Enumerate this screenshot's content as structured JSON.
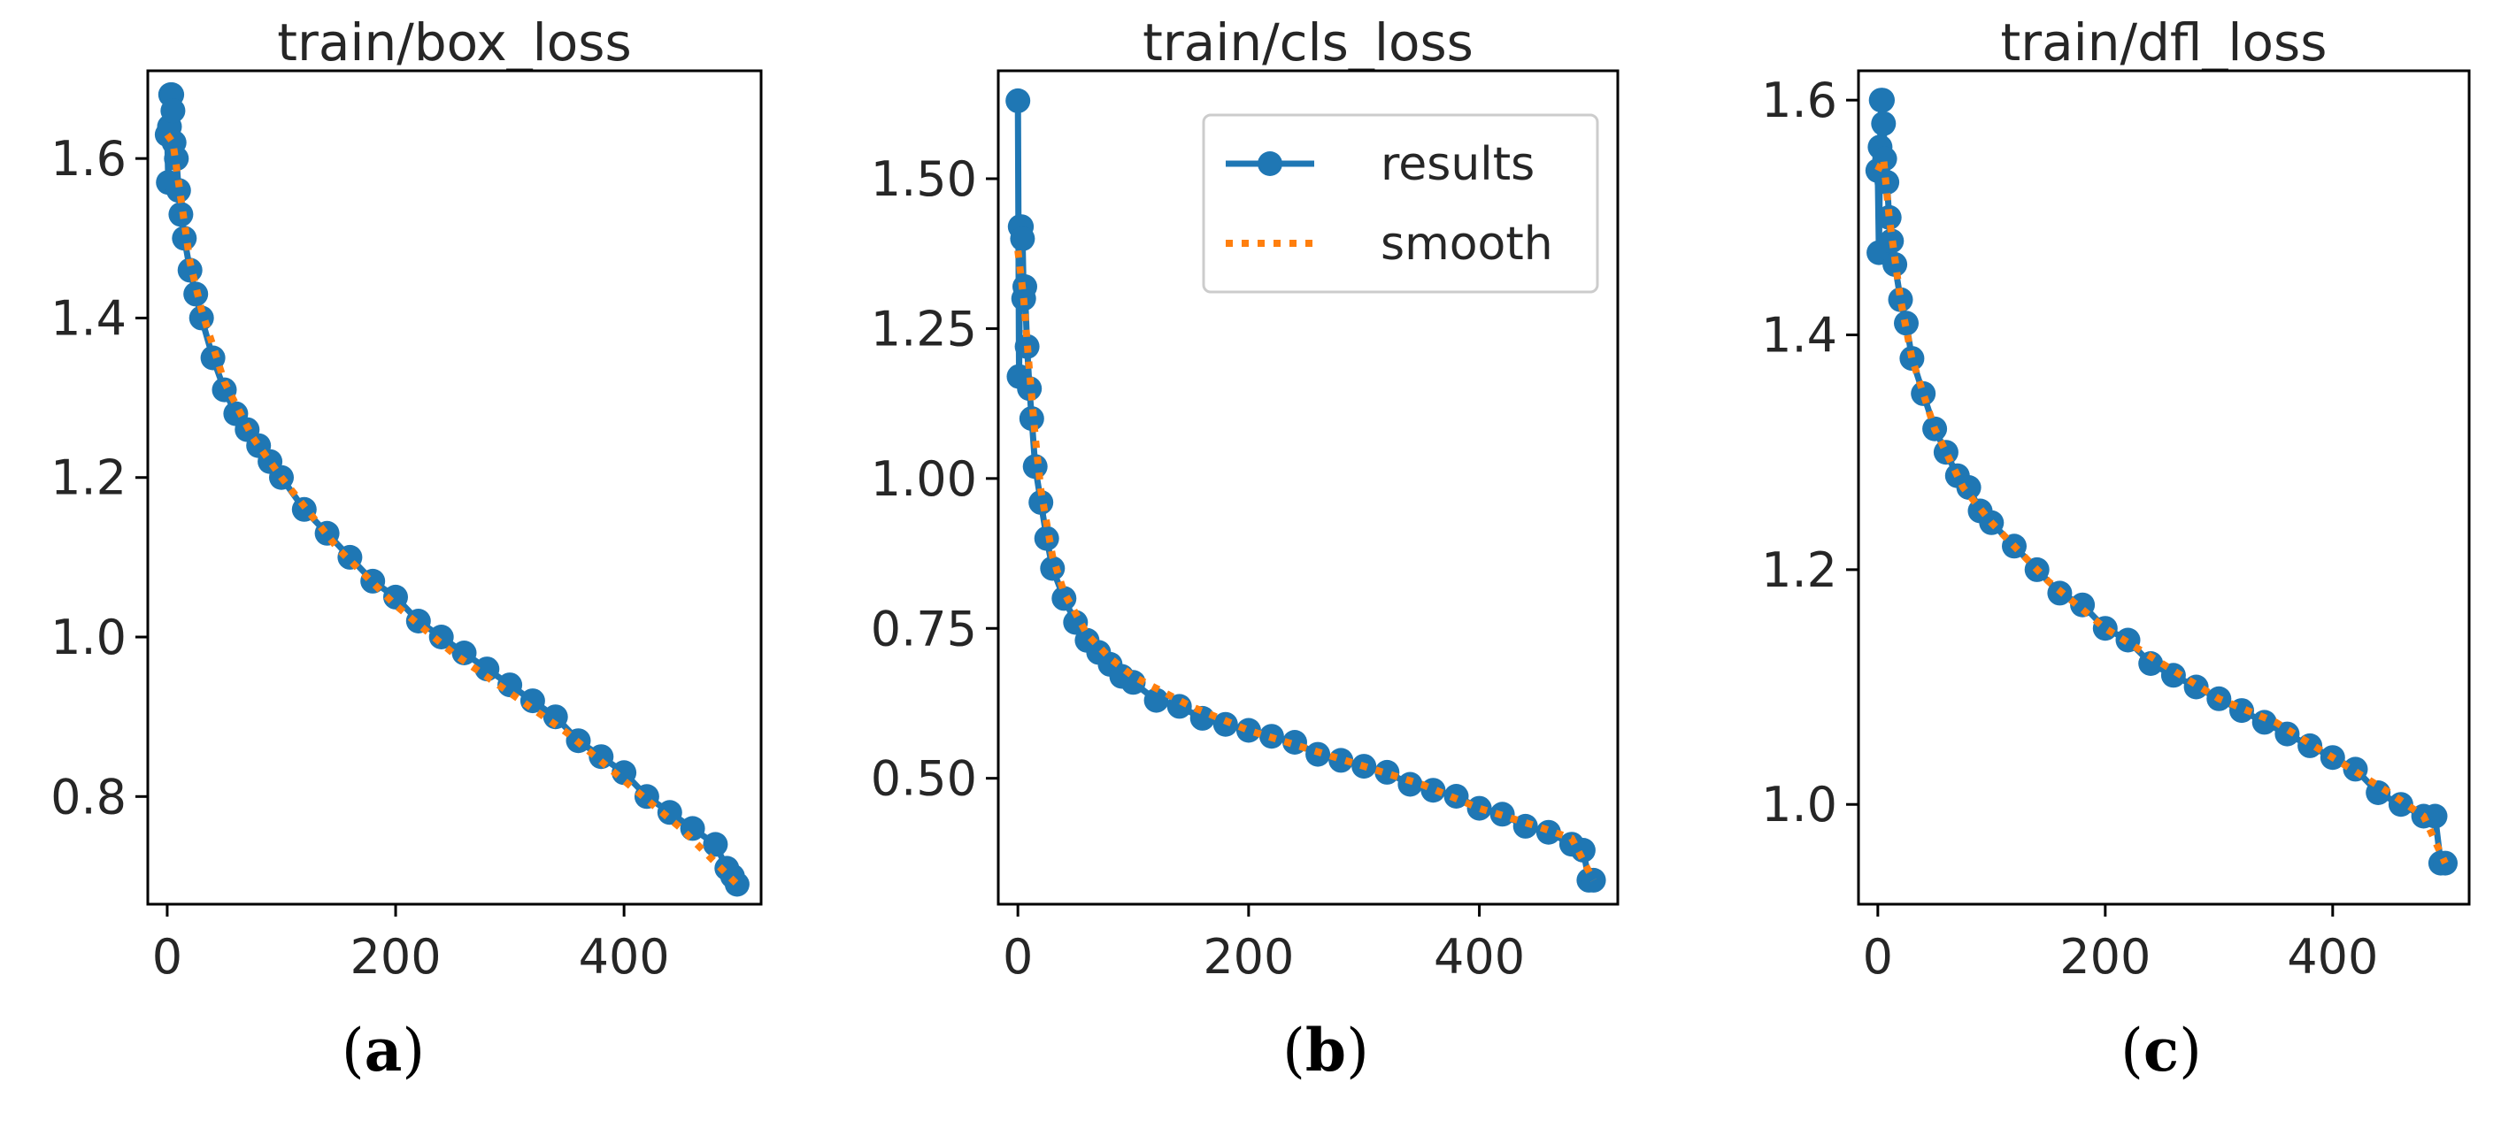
{
  "chart_data": [
    {
      "type": "line",
      "title": "train/box_loss",
      "panel_label": {
        "open": "(",
        "letter": "a",
        "close": ")"
      },
      "xlim": [
        -17,
        520
      ],
      "ylim": [
        0.665,
        1.71
      ],
      "xticks": [
        0,
        200,
        400
      ],
      "xtick_labels": [
        "0",
        "200",
        "400"
      ],
      "yticks": [
        0.8,
        1.0,
        1.2,
        1.4,
        1.6
      ],
      "ytick_labels": [
        "0.8",
        "1.0",
        "1.2",
        "1.4",
        "1.6"
      ],
      "legend": null,
      "series": [
        {
          "name": "results",
          "x": [
            0,
            1,
            2,
            3,
            4,
            5,
            6,
            8,
            10,
            12,
            15,
            20,
            25,
            30,
            40,
            50,
            60,
            70,
            80,
            90,
            100,
            120,
            140,
            160,
            180,
            200,
            220,
            240,
            260,
            280,
            300,
            320,
            340,
            360,
            380,
            400,
            420,
            440,
            460,
            480,
            490,
            495,
            499
          ],
          "values": [
            1.63,
            1.57,
            1.64,
            1.68,
            1.68,
            1.66,
            1.62,
            1.6,
            1.56,
            1.53,
            1.5,
            1.46,
            1.43,
            1.4,
            1.35,
            1.31,
            1.28,
            1.26,
            1.24,
            1.22,
            1.2,
            1.16,
            1.13,
            1.1,
            1.07,
            1.05,
            1.02,
            1.0,
            0.98,
            0.96,
            0.94,
            0.92,
            0.9,
            0.87,
            0.85,
            0.83,
            0.8,
            0.78,
            0.76,
            0.74,
            0.71,
            0.7,
            0.69
          ]
        },
        {
          "name": "smooth",
          "x": [
            0,
            5,
            10,
            20,
            30,
            50,
            75,
            100,
            150,
            200,
            250,
            300,
            350,
            400,
            450,
            499
          ],
          "values": [
            1.63,
            1.62,
            1.57,
            1.47,
            1.41,
            1.32,
            1.25,
            1.2,
            1.11,
            1.04,
            0.98,
            0.93,
            0.88,
            0.82,
            0.76,
            0.69
          ]
        }
      ]
    },
    {
      "type": "line",
      "title": "train/cls_loss",
      "panel_label": {
        "open": "(",
        "letter": "b",
        "close": ")"
      },
      "xlim": [
        -17,
        520
      ],
      "ylim": [
        0.29,
        1.68
      ],
      "xticks": [
        0,
        200,
        400
      ],
      "xtick_labels": [
        "0",
        "200",
        "400"
      ],
      "yticks": [
        0.5,
        0.75,
        1.0,
        1.25,
        1.5
      ],
      "ytick_labels": [
        "0.50",
        "0.75",
        "1.00",
        "1.25",
        "1.50"
      ],
      "legend": {
        "position": "upper right",
        "entries": [
          "results",
          "smooth"
        ]
      },
      "series": [
        {
          "name": "results",
          "x": [
            0,
            1,
            2,
            3,
            4,
            5,
            6,
            8,
            10,
            12,
            15,
            20,
            25,
            30,
            40,
            50,
            60,
            70,
            80,
            90,
            100,
            120,
            140,
            160,
            180,
            200,
            220,
            240,
            260,
            280,
            300,
            320,
            340,
            360,
            380,
            400,
            420,
            440,
            460,
            480,
            490,
            495,
            499
          ],
          "values": [
            1.63,
            1.17,
            1.42,
            1.42,
            1.4,
            1.3,
            1.32,
            1.22,
            1.15,
            1.1,
            1.02,
            0.96,
            0.9,
            0.85,
            0.8,
            0.76,
            0.73,
            0.71,
            0.69,
            0.67,
            0.66,
            0.63,
            0.62,
            0.6,
            0.59,
            0.58,
            0.57,
            0.56,
            0.54,
            0.53,
            0.52,
            0.51,
            0.49,
            0.48,
            0.47,
            0.45,
            0.44,
            0.42,
            0.41,
            0.39,
            0.38,
            0.33,
            0.33
          ]
        },
        {
          "name": "smooth",
          "x": [
            0,
            5,
            10,
            15,
            20,
            30,
            40,
            60,
            80,
            100,
            150,
            200,
            250,
            300,
            350,
            400,
            450,
            480,
            499
          ],
          "values": [
            1.38,
            1.3,
            1.18,
            1.07,
            0.98,
            0.87,
            0.81,
            0.74,
            0.7,
            0.67,
            0.62,
            0.58,
            0.55,
            0.52,
            0.49,
            0.45,
            0.42,
            0.4,
            0.33
          ]
        }
      ]
    },
    {
      "type": "line",
      "title": "train/dfl_loss",
      "panel_label": {
        "open": "(",
        "letter": "c",
        "close": ")"
      },
      "xlim": [
        -17,
        520
      ],
      "ylim": [
        0.915,
        1.625
      ],
      "xticks": [
        0,
        200,
        400
      ],
      "xtick_labels": [
        "0",
        "200",
        "400"
      ],
      "yticks": [
        1.0,
        1.2,
        1.4,
        1.6
      ],
      "ytick_labels": [
        "1.0",
        "1.2",
        "1.4",
        "1.6"
      ],
      "legend": null,
      "series": [
        {
          "name": "results",
          "x": [
            0,
            1,
            2,
            3,
            4,
            5,
            6,
            8,
            10,
            12,
            15,
            20,
            25,
            30,
            40,
            50,
            60,
            70,
            80,
            90,
            100,
            120,
            140,
            160,
            180,
            200,
            220,
            240,
            260,
            280,
            300,
            320,
            340,
            360,
            380,
            400,
            420,
            440,
            460,
            480,
            490,
            495,
            499
          ],
          "values": [
            1.54,
            1.47,
            1.56,
            1.6,
            1.6,
            1.58,
            1.55,
            1.53,
            1.5,
            1.48,
            1.46,
            1.43,
            1.41,
            1.38,
            1.35,
            1.32,
            1.3,
            1.28,
            1.27,
            1.25,
            1.24,
            1.22,
            1.2,
            1.18,
            1.17,
            1.15,
            1.14,
            1.12,
            1.11,
            1.1,
            1.09,
            1.08,
            1.07,
            1.06,
            1.05,
            1.04,
            1.03,
            1.01,
            1.0,
            0.99,
            0.99,
            0.95,
            0.95
          ]
        },
        {
          "name": "smooth",
          "x": [
            0,
            5,
            10,
            20,
            30,
            50,
            75,
            100,
            150,
            200,
            250,
            300,
            350,
            400,
            450,
            480,
            499
          ],
          "values": [
            1.54,
            1.55,
            1.5,
            1.43,
            1.38,
            1.32,
            1.27,
            1.24,
            1.19,
            1.15,
            1.12,
            1.09,
            1.07,
            1.04,
            1.01,
            0.99,
            0.95
          ]
        }
      ]
    }
  ],
  "style": {
    "results_color": "#1f77b4",
    "smooth_color": "#ff7f0e",
    "axis_color": "#000000"
  }
}
